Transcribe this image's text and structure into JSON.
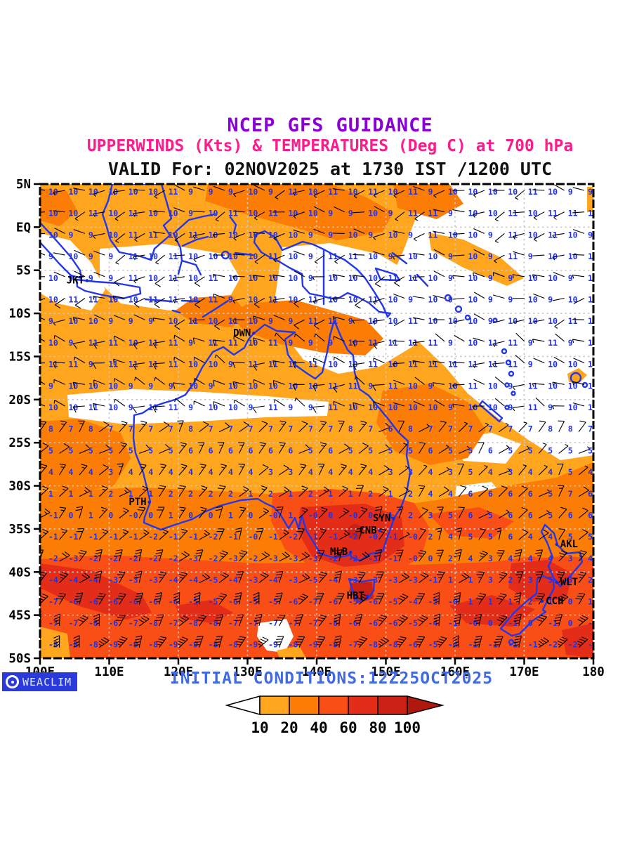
{
  "titles": {
    "line1": "NCEP GFS GUIDANCE",
    "line2": "UPPERWINDS (Kts) & TEMPERATURES (Deg C) at 700 hPa",
    "line3": "VALID For: 02NOV2025 at 1730 IST /1200 UTC"
  },
  "footer": {
    "logo_text": "WEACLIM",
    "logo_icon": "circle-ring-icon",
    "initial_conditions": "INITIAL CONDITIONS:12Z25OCT2025"
  },
  "colors": {
    "title1": "#8B00D6",
    "title2": "#FA1E8C",
    "initial_conditions": "#4169E1",
    "coastline": "#2437E6",
    "temp_text": "#2031E8",
    "grid": "#C8C8C8",
    "logo_bg": "#2B3BDB",
    "shade_amber": "#FFA51E",
    "shade_orange": "#FB7D06",
    "shade_orangered": "#F94E15",
    "shade_red": "#E42D18",
    "shade_darkred": "#CB2014",
    "colorbar_right_arrow": "#B0180D",
    "colorbar_left_arrow": "#FFFFFF"
  },
  "map": {
    "lon_range": [
      100,
      180
    ],
    "lat_range": [
      -50,
      5
    ],
    "x_ticks": [
      {
        "label": "100E",
        "lon": 100
      },
      {
        "label": "110E",
        "lon": 110
      },
      {
        "label": "120E",
        "lon": 120
      },
      {
        "label": "130E",
        "lon": 130
      },
      {
        "label": "140E",
        "lon": 140
      },
      {
        "label": "150E",
        "lon": 150
      },
      {
        "label": "160E",
        "lon": 160
      },
      {
        "label": "170E",
        "lon": 170
      },
      {
        "label": "180",
        "lon": 180
      }
    ],
    "y_ticks": [
      {
        "label": "5N",
        "lat": 5
      },
      {
        "label": "EQ",
        "lat": 0
      },
      {
        "label": "5S",
        "lat": -5
      },
      {
        "label": "10S",
        "lat": -10
      },
      {
        "label": "15S",
        "lat": -15
      },
      {
        "label": "20S",
        "lat": -20
      },
      {
        "label": "25S",
        "lat": -25
      },
      {
        "label": "30S",
        "lat": -30
      },
      {
        "label": "35S",
        "lat": -35
      },
      {
        "label": "40S",
        "lat": -40
      },
      {
        "label": "45S",
        "lat": -45
      },
      {
        "label": "50S",
        "lat": -50
      }
    ],
    "cities": [
      {
        "code": "JKT",
        "lon": 106.8,
        "lat": -6.2,
        "side": "end"
      },
      {
        "code": "DWN",
        "lon": 130.9,
        "lat": -12.3,
        "side": "end"
      },
      {
        "code": "PTH",
        "lon": 115.8,
        "lat": -31.9,
        "side": "end"
      },
      {
        "code": "SYN",
        "lon": 151.1,
        "lat": -33.8,
        "side": "end"
      },
      {
        "code": "CNB",
        "lon": 149.1,
        "lat": -35.2,
        "side": "end"
      },
      {
        "code": "MLB",
        "lon": 144.9,
        "lat": -37.7,
        "side": "end"
      },
      {
        "code": "HBT",
        "lon": 147.3,
        "lat": -42.8,
        "side": "end"
      },
      {
        "code": "AKL",
        "lon": 174.7,
        "lat": -36.8,
        "side": "start"
      },
      {
        "code": "WLT",
        "lon": 174.7,
        "lat": -41.2,
        "side": "start"
      },
      {
        "code": "CCH",
        "lon": 172.6,
        "lat": -43.4,
        "side": "start"
      }
    ]
  },
  "colorbar": {
    "labels": [
      "10",
      "20",
      "40",
      "60",
      "80",
      "100"
    ],
    "segment_colors": [
      "#FFA51E",
      "#FB7D06",
      "#F94E15",
      "#E42D18",
      "#CB2014"
    ]
  },
  "chart_data": {
    "type": "heatmap",
    "title": "NCEP GFS GUIDANCE",
    "subtitle": "UPPERWINDS (Kts) & TEMPERATURES (Deg C) at 700 hPa",
    "valid_time": "02NOV2025 at 1730 IST /1200 UTC",
    "initial_conditions": "12Z25OCT2025",
    "x_axis": {
      "label": "longitude",
      "range_deg_east": [
        100,
        180
      ],
      "tick_step_deg": 10
    },
    "y_axis": {
      "label": "latitude",
      "range_deg": [
        -50,
        5
      ],
      "tick_step_deg": 5
    },
    "colorbar_scale_kts": [
      10,
      20,
      40,
      60,
      80,
      100
    ],
    "grid": "dotted, 10 deg lon x 5 deg lat",
    "legend_position": "bottom-center",
    "temperature_degC_by_latitude_samples": {
      "5N_to_10S": 10,
      "13S_to_18S": 11,
      "20S": 10,
      "23S": 9,
      "26S": 6,
      "29S": 4,
      "32S": 2,
      "35S": 0,
      "38S": -2,
      "41S": -3,
      "44S": -5,
      "47S": -7,
      "50S": -8,
      "tasman_sea_35S": 6,
      "coral_sea_20S": 8
    },
    "wind_character": "light 5-10 kt tropics, strengthening westerlies 20-40 kt south of 30S",
    "stations": [
      "JKT",
      "DWN",
      "PTH",
      "SYN",
      "CNB",
      "MLB",
      "HBT",
      "AKL",
      "WLT",
      "CCH"
    ]
  }
}
